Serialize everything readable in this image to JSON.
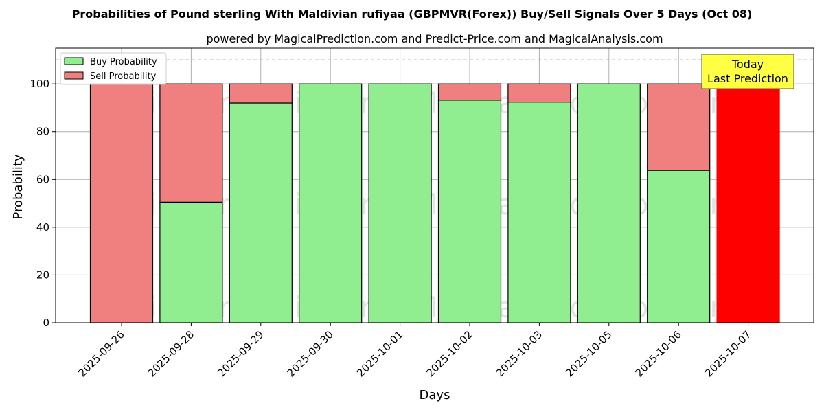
{
  "chart_data": {
    "type": "bar",
    "stacked": true,
    "title": "Probabilities of Pound sterling With Maldivian rufiyaa (GBPMVR(Forex)) Buy/Sell Signals Over 5 Days (Oct 08)",
    "subtitle": "powered by MagicalPrediction.com and Predict-Price.com and MagicalAnalysis.com",
    "xlabel": "Days",
    "ylabel": "Probability",
    "ylim": [
      0,
      115
    ],
    "yticks": [
      0,
      20,
      40,
      60,
      80,
      100
    ],
    "reference_line": 110,
    "grid": true,
    "legend_position": "top-left",
    "categories": [
      "2025-09-26",
      "2025-09-28",
      "2025-09-29",
      "2025-09-30",
      "2025-10-01",
      "2025-10-02",
      "2025-10-03",
      "2025-10-05",
      "2025-10-06",
      "2025-10-07"
    ],
    "series": [
      {
        "name": "Buy Probability",
        "color": "#90ee90",
        "values": [
          0,
          50.5,
          92,
          100,
          100,
          93.2,
          92.4,
          100,
          63.8,
          0
        ]
      },
      {
        "name": "Sell Probability",
        "color": "#f08080",
        "values": [
          100,
          49.5,
          8,
          0,
          0,
          6.8,
          7.6,
          0,
          36.2,
          100
        ]
      }
    ],
    "highlight": {
      "index": 9,
      "color": "#ff0000"
    },
    "annotation": {
      "lines": [
        "Today",
        "Last Prediction"
      ],
      "color": "#ffff44"
    },
    "watermarks": [
      "MagicalAnalysis.com",
      "MagicalPrediction.com"
    ]
  }
}
